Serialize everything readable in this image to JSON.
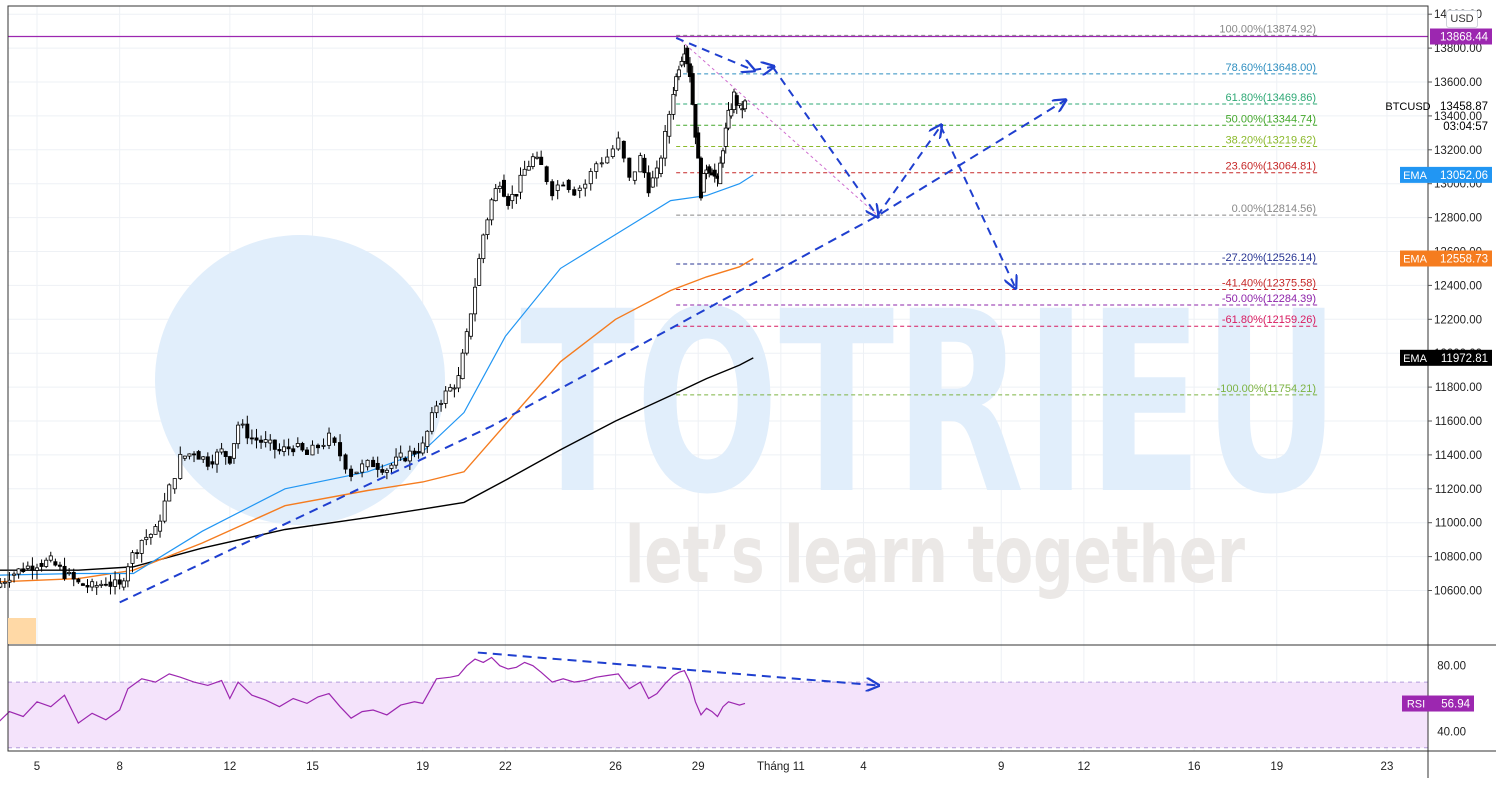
{
  "currency_button": "USD",
  "watermark": {
    "brand": "TOTRIEU",
    "slogan": "let’s learn together"
  },
  "colors": {
    "grid": "#eef1f5",
    "candle": "#000000",
    "ema_fast": "#2196f3",
    "ema_mid": "#f57c1f",
    "ema_slow": "#000000",
    "trend": "#1f3fcf",
    "rsi": "#9c27b0",
    "rsi_band": "#f4e3fb",
    "resistance": "#9c27b0",
    "watermark": "#e1eefb"
  },
  "chart_data": [
    {
      "type": "candlestick",
      "symbol": "BTCUSD",
      "ylim": [
        10500,
        14150
      ],
      "x_ticks": [
        "5",
        "8",
        "12",
        "15",
        "19",
        "22",
        "26",
        "29",
        "Tháng 11",
        "4",
        "9",
        "12",
        "16",
        "19",
        "23"
      ],
      "y_ticks": [
        "10600.00",
        "10800.00",
        "11000.00",
        "11200.00",
        "11400.00",
        "11600.00",
        "11800.00",
        "12000.00",
        "12200.00",
        "12400.00",
        "12600.00",
        "12800.00",
        "13000.00",
        "13200.00",
        "13400.00",
        "13600.00",
        "13800.00",
        "14000.00"
      ],
      "close_path": [
        [
          3.5,
          10620
        ],
        [
          4.0,
          10690
        ],
        [
          4.5,
          10730
        ],
        [
          5.0,
          10760
        ],
        [
          5.5,
          10770
        ],
        [
          6.0,
          10700
        ],
        [
          6.5,
          10640
        ],
        [
          7.0,
          10620
        ],
        [
          7.5,
          10650
        ],
        [
          8.0,
          10620
        ],
        [
          8.3,
          10760
        ],
        [
          8.8,
          10900
        ],
        [
          9.3,
          10950
        ],
        [
          9.8,
          11200
        ],
        [
          10.2,
          11380
        ],
        [
          10.7,
          11420
        ],
        [
          11.2,
          11360
        ],
        [
          11.7,
          11420
        ],
        [
          12.0,
          11380
        ],
        [
          12.3,
          11580
        ],
        [
          12.8,
          11500
        ],
        [
          13.3,
          11470
        ],
        [
          13.8,
          11420
        ],
        [
          14.3,
          11450
        ],
        [
          14.8,
          11400
        ],
        [
          15.2,
          11450
        ],
        [
          15.6,
          11500
        ],
        [
          16.0,
          11400
        ],
        [
          16.4,
          11290
        ],
        [
          16.8,
          11330
        ],
        [
          17.2,
          11350
        ],
        [
          17.7,
          11320
        ],
        [
          18.2,
          11380
        ],
        [
          18.7,
          11420
        ],
        [
          19.0,
          11450
        ],
        [
          19.5,
          11700
        ],
        [
          20.0,
          11790
        ],
        [
          20.3,
          11850
        ],
        [
          20.6,
          12100
        ],
        [
          20.9,
          12400
        ],
        [
          21.2,
          12700
        ],
        [
          21.5,
          12900
        ],
        [
          21.8,
          13020
        ],
        [
          22.1,
          12900
        ],
        [
          22.4,
          12950
        ],
        [
          22.7,
          13080
        ],
        [
          23.0,
          13150
        ],
        [
          23.3,
          13100
        ],
        [
          23.7,
          12960
        ],
        [
          24.1,
          13020
        ],
        [
          24.5,
          12960
        ],
        [
          24.9,
          13000
        ],
        [
          25.3,
          13120
        ],
        [
          25.7,
          13160
        ],
        [
          26.1,
          13250
        ],
        [
          26.5,
          13020
        ],
        [
          26.9,
          13150
        ],
        [
          27.2,
          12980
        ],
        [
          27.5,
          13060
        ],
        [
          27.8,
          13280
        ],
        [
          28.1,
          13550
        ],
        [
          28.3,
          13700
        ],
        [
          28.5,
          13800
        ],
        [
          28.7,
          13650
        ],
        [
          28.9,
          13300
        ],
        [
          29.1,
          12950
        ],
        [
          29.3,
          13100
        ],
        [
          29.5,
          13080
        ],
        [
          29.7,
          13000
        ],
        [
          29.9,
          13220
        ],
        [
          30.1,
          13400
        ],
        [
          30.3,
          13520
        ],
        [
          30.5,
          13440
        ],
        [
          30.7,
          13470
        ]
      ],
      "ema_fast": [
        [
          3.5,
          10690
        ],
        [
          6.5,
          10700
        ],
        [
          8.5,
          10700
        ],
        [
          11.0,
          10950
        ],
        [
          14.0,
          11200
        ],
        [
          17.0,
          11300
        ],
        [
          19.0,
          11420
        ],
        [
          20.5,
          11650
        ],
        [
          22.0,
          12100
        ],
        [
          24.0,
          12500
        ],
        [
          26.0,
          12700
        ],
        [
          28.0,
          12900
        ],
        [
          29.3,
          12930
        ],
        [
          30.5,
          13000
        ],
        [
          31.0,
          13052
        ]
      ],
      "ema_mid": [
        [
          3.5,
          10650
        ],
        [
          6.5,
          10670
        ],
        [
          8.5,
          10720
        ],
        [
          11.0,
          10880
        ],
        [
          14.0,
          11100
        ],
        [
          17.0,
          11190
        ],
        [
          19.0,
          11240
        ],
        [
          20.5,
          11300
        ],
        [
          22.0,
          11580
        ],
        [
          24.0,
          11950
        ],
        [
          26.0,
          12200
        ],
        [
          28.0,
          12370
        ],
        [
          29.3,
          12450
        ],
        [
          30.5,
          12510
        ],
        [
          31.0,
          12558
        ]
      ],
      "ema_slow": [
        [
          3.5,
          10720
        ],
        [
          6.5,
          10720
        ],
        [
          8.5,
          10740
        ],
        [
          11.0,
          10850
        ],
        [
          14.0,
          10960
        ],
        [
          17.0,
          11030
        ],
        [
          19.0,
          11080
        ],
        [
          20.5,
          11120
        ],
        [
          22.0,
          11250
        ],
        [
          24.0,
          11430
        ],
        [
          26.0,
          11600
        ],
        [
          28.0,
          11750
        ],
        [
          29.3,
          11850
        ],
        [
          30.5,
          11930
        ],
        [
          31.0,
          11972
        ]
      ],
      "fibonacci": [
        {
          "label": "100.00%(13874.92)",
          "price": 13874.92,
          "color": "#888888"
        },
        {
          "label": "78.60%(13648.00)",
          "price": 13648.0,
          "color": "#2f8fc0"
        },
        {
          "label": "61.80%(13469.86)",
          "price": 13469.86,
          "color": "#2ea875"
        },
        {
          "label": "50.00%(13344.74)",
          "price": 13344.74,
          "color": "#43a72c"
        },
        {
          "label": "38.20%(13219.62)",
          "price": 13219.62,
          "color": "#8bb92c"
        },
        {
          "label": "23.60%(13064.81)",
          "price": 13064.81,
          "color": "#c62828"
        },
        {
          "label": "0.00%(12814.56)",
          "price": 12814.56,
          "color": "#888888"
        },
        {
          "label": "-27.20%(12526.14)",
          "price": 12526.14,
          "color": "#283593"
        },
        {
          "label": "-41.40%(12375.58)",
          "price": 12375.58,
          "color": "#c62828"
        },
        {
          "label": "-50.00%(12284.39)",
          "price": 12284.39,
          "color": "#8e24aa"
        },
        {
          "label": "-61.80%(12159.26)",
          "price": 12159.26,
          "color": "#d81b60"
        },
        {
          "label": "-100.00%(11754.21)",
          "price": 11754.21,
          "color": "#7cb342"
        }
      ],
      "resistance_price": 13868.44,
      "projection": [
        [
          28.2,
          13860
        ],
        [
          31.0,
          13670
        ],
        [
          31.7,
          13690
        ],
        [
          35.5,
          12810
        ],
        [
          37.8,
          13340
        ],
        [
          40.5,
          12390
        ]
      ],
      "uptrend_line": [
        [
          8.0,
          10530
        ],
        [
          21.5,
          11570
        ],
        [
          35.5,
          12810
        ],
        [
          42.3,
          13490
        ]
      ],
      "price_labels": [
        {
          "label": "",
          "value": "13868.44",
          "price": 13868.44,
          "bg": "#9c27b0",
          "fg": "#ffffff"
        },
        {
          "label": "BTCUSD",
          "value": "13458.87",
          "price": 13458.87,
          "bg": "#ffffff",
          "fg": "#000000"
        },
        {
          "label": "",
          "value": "03:04:57",
          "price": 13340,
          "bg": "#ffffff",
          "fg": "#000000"
        },
        {
          "label": "EMA",
          "value": "13052.06",
          "price": 13052.06,
          "bg": "#2196f3",
          "fg": "#ffffff"
        },
        {
          "label": "EMA",
          "value": "12558.73",
          "price": 12558.73,
          "bg": "#f57c1f",
          "fg": "#ffffff"
        },
        {
          "label": "EMA",
          "value": "11972.81",
          "price": 11972.81,
          "bg": "#000000",
          "fg": "#ffffff"
        }
      ]
    },
    {
      "type": "line",
      "name": "RSI",
      "ylim": [
        28,
        92
      ],
      "y_ticks": [
        "80.00",
        "40.00"
      ],
      "bands": [
        70,
        30
      ],
      "current": "56.94",
      "values": [
        [
          3.5,
          44
        ],
        [
          4.0,
          52
        ],
        [
          4.5,
          49
        ],
        [
          5.0,
          58
        ],
        [
          5.5,
          55
        ],
        [
          6.0,
          62
        ],
        [
          6.5,
          45
        ],
        [
          7.0,
          51
        ],
        [
          7.5,
          47
        ],
        [
          8.0,
          53
        ],
        [
          8.3,
          66
        ],
        [
          8.8,
          72
        ],
        [
          9.3,
          70
        ],
        [
          9.8,
          75
        ],
        [
          10.2,
          73
        ],
        [
          10.7,
          70
        ],
        [
          11.2,
          68
        ],
        [
          11.7,
          71
        ],
        [
          12.0,
          60
        ],
        [
          12.3,
          70
        ],
        [
          12.8,
          62
        ],
        [
          13.3,
          59
        ],
        [
          13.8,
          55
        ],
        [
          14.3,
          60
        ],
        [
          14.8,
          57
        ],
        [
          15.2,
          61
        ],
        [
          15.6,
          63
        ],
        [
          16.0,
          55
        ],
        [
          16.4,
          48
        ],
        [
          16.8,
          52
        ],
        [
          17.2,
          53
        ],
        [
          17.7,
          50
        ],
        [
          18.2,
          56
        ],
        [
          18.7,
          58
        ],
        [
          19.0,
          57
        ],
        [
          19.5,
          72
        ],
        [
          20.0,
          73
        ],
        [
          20.3,
          74
        ],
        [
          20.6,
          80
        ],
        [
          20.9,
          84
        ],
        [
          21.2,
          82
        ],
        [
          21.5,
          85
        ],
        [
          21.8,
          80
        ],
        [
          22.1,
          78
        ],
        [
          22.4,
          79
        ],
        [
          22.7,
          82
        ],
        [
          23.0,
          80
        ],
        [
          23.3,
          76
        ],
        [
          23.7,
          70
        ],
        [
          24.1,
          72
        ],
        [
          24.5,
          70
        ],
        [
          24.9,
          71
        ],
        [
          25.3,
          73
        ],
        [
          25.7,
          74
        ],
        [
          26.1,
          75
        ],
        [
          26.5,
          66
        ],
        [
          26.9,
          70
        ],
        [
          27.2,
          60
        ],
        [
          27.5,
          63
        ],
        [
          27.8,
          69
        ],
        [
          28.1,
          74
        ],
        [
          28.3,
          76
        ],
        [
          28.5,
          77
        ],
        [
          28.7,
          70
        ],
        [
          28.9,
          58
        ],
        [
          29.1,
          50
        ],
        [
          29.3,
          54
        ],
        [
          29.5,
          52
        ],
        [
          29.7,
          49
        ],
        [
          29.9,
          55
        ],
        [
          30.1,
          58
        ],
        [
          30.3,
          57
        ],
        [
          30.5,
          56
        ],
        [
          30.7,
          57
        ]
      ],
      "divergence": [
        [
          21.0,
          88
        ],
        [
          35.5,
          68
        ]
      ]
    }
  ]
}
